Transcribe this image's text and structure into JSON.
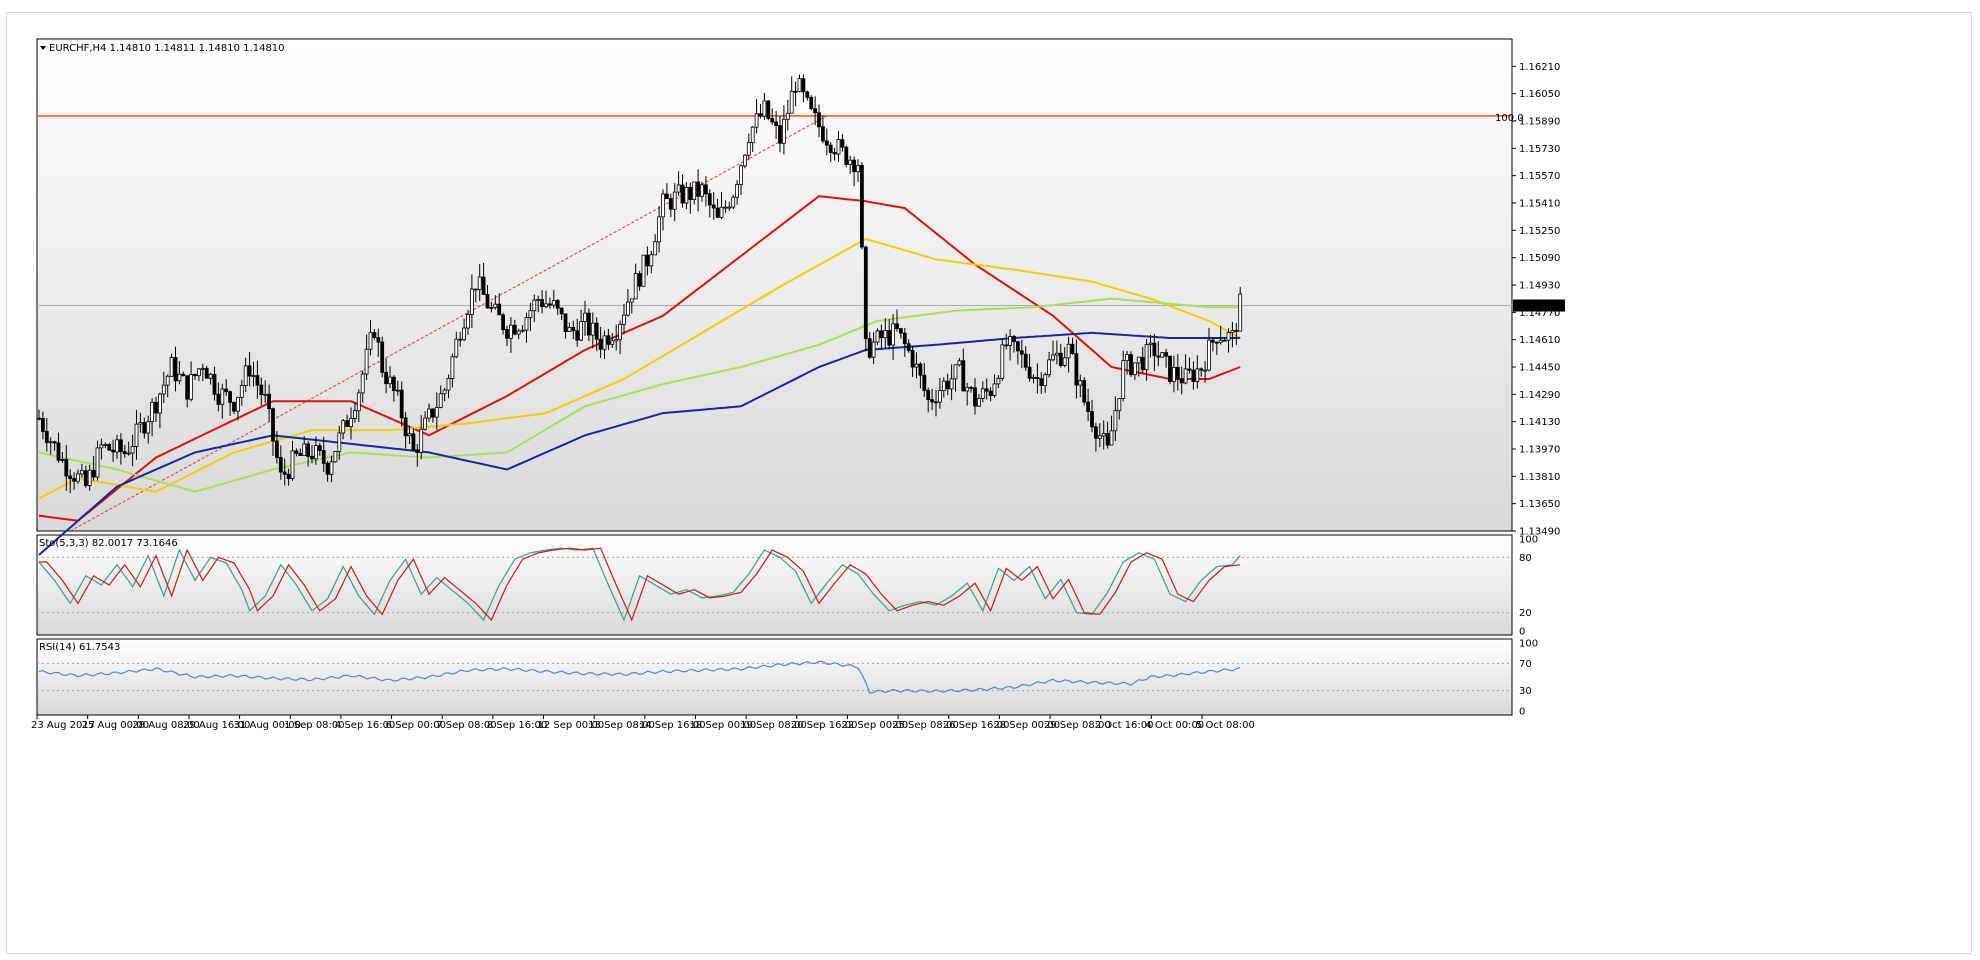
{
  "chart_data": {
    "type": "candlestick",
    "symbol_header": "EURCHF,H4  1.14810 1.14811 1.14810 1.14810",
    "header_icon": "triangle-down-icon",
    "last_price_label": "1.14810",
    "level_line": {
      "label": "100.0",
      "price": 1.1592,
      "color": "#e8541c"
    },
    "price_axis": {
      "ticks": [
        "1.16210",
        "1.16050",
        "1.15890",
        "1.15730",
        "1.15570",
        "1.15410",
        "1.15250",
        "1.15090",
        "1.14930",
        "1.14770",
        "1.14610",
        "1.14450",
        "1.14290",
        "1.14130",
        "1.13970",
        "1.13810",
        "1.13650",
        "1.13490"
      ],
      "ylim": [
        1.1349,
        1.1637
      ]
    },
    "time_axis": [
      "23 Aug 2017",
      "25 Aug 00:00",
      "28 Aug 08:00",
      "29 Aug 16:00",
      "31 Aug 00:00",
      "1 Sep 08:00",
      "4 Sep 16:00",
      "6 Sep 00:00",
      "7 Sep 08:00",
      "8 Sep 16:00",
      "12 Sep 00:00",
      "13 Sep 08:00",
      "14 Sep 16:00",
      "18 Sep 00:00",
      "19 Sep 08:00",
      "20 Sep 16:00",
      "22 Sep 00:00",
      "25 Sep 08:00",
      "26 Sep 16:00",
      "28 Sep 00:00",
      "29 Sep 08:00",
      "2 Oct 16:00",
      "4 Oct 00:00",
      "5 Oct 08:00"
    ],
    "price_keypoints": [
      [
        0,
        1.1415
      ],
      [
        6,
        1.139
      ],
      [
        12,
        1.1375
      ],
      [
        16,
        1.1398
      ],
      [
        22,
        1.1395
      ],
      [
        25,
        1.1405
      ],
      [
        30,
        1.1425
      ],
      [
        34,
        1.1445
      ],
      [
        38,
        1.1432
      ],
      [
        42,
        1.1448
      ],
      [
        46,
        1.143
      ],
      [
        50,
        1.1425
      ],
      [
        54,
        1.1445
      ],
      [
        58,
        1.1425
      ],
      [
        62,
        1.138
      ],
      [
        66,
        1.1392
      ],
      [
        70,
        1.1395
      ],
      [
        74,
        1.1388
      ],
      [
        78,
        1.1408
      ],
      [
        82,
        1.1432
      ],
      [
        86,
        1.1468
      ],
      [
        88,
        1.1445
      ],
      [
        92,
        1.1425
      ],
      [
        96,
        1.1395
      ],
      [
        100,
        1.1415
      ],
      [
        104,
        1.1432
      ],
      [
        108,
        1.1468
      ],
      [
        112,
        1.1495
      ],
      [
        116,
        1.1478
      ],
      [
        120,
        1.1468
      ],
      [
        124,
        1.1472
      ],
      [
        128,
        1.1485
      ],
      [
        132,
        1.148
      ],
      [
        136,
        1.1465
      ],
      [
        140,
        1.147
      ],
      [
        144,
        1.146
      ],
      [
        148,
        1.1468
      ],
      [
        152,
        1.149
      ],
      [
        156,
        1.1508
      ],
      [
        160,
        1.154
      ],
      [
        164,
        1.1545
      ],
      [
        170,
        1.1548
      ],
      [
        174,
        1.153
      ],
      [
        178,
        1.1548
      ],
      [
        182,
        1.1582
      ],
      [
        186,
        1.1595
      ],
      [
        190,
        1.1578
      ],
      [
        194,
        1.1612
      ],
      [
        198,
        1.1592
      ],
      [
        202,
        1.158
      ],
      [
        206,
        1.157
      ],
      [
        210,
        1.1565
      ],
      [
        212,
        1.1455
      ],
      [
        216,
        1.1462
      ],
      [
        220,
        1.1465
      ],
      [
        224,
        1.145
      ],
      [
        228,
        1.1425
      ],
      [
        232,
        1.1435
      ],
      [
        236,
        1.1442
      ],
      [
        240,
        1.1425
      ],
      [
        244,
        1.1432
      ],
      [
        248,
        1.1458
      ],
      [
        252,
        1.145
      ],
      [
        256,
        1.1438
      ],
      [
        260,
        1.145
      ],
      [
        264,
        1.1455
      ],
      [
        268,
        1.1425
      ],
      [
        272,
        1.1405
      ],
      [
        274,
        1.1395
      ],
      [
        278,
        1.1445
      ],
      [
        282,
        1.1448
      ],
      [
        286,
        1.1455
      ],
      [
        290,
        1.1442
      ],
      [
        294,
        1.1438
      ],
      [
        298,
        1.1445
      ],
      [
        302,
        1.1465
      ],
      [
        306,
        1.1462
      ],
      [
        308,
        1.1481
      ]
    ],
    "moving_averages": [
      {
        "color": "#e01010",
        "points": [
          [
            0,
            1.1358
          ],
          [
            10,
            1.1355
          ],
          [
            30,
            1.1392
          ],
          [
            60,
            1.1425
          ],
          [
            80,
            1.1425
          ],
          [
            100,
            1.1405
          ],
          [
            120,
            1.1428
          ],
          [
            140,
            1.1455
          ],
          [
            160,
            1.1475
          ],
          [
            180,
            1.151
          ],
          [
            200,
            1.1545
          ],
          [
            212,
            1.1542
          ],
          [
            222,
            1.1538
          ],
          [
            240,
            1.1505
          ],
          [
            260,
            1.1475
          ],
          [
            275,
            1.1445
          ],
          [
            290,
            1.1438
          ],
          [
            300,
            1.1438
          ],
          [
            308,
            1.1445
          ]
        ]
      },
      {
        "color": "#f2d000",
        "points": [
          [
            0,
            1.1368
          ],
          [
            10,
            1.138
          ],
          [
            30,
            1.1372
          ],
          [
            50,
            1.1395
          ],
          [
            70,
            1.1408
          ],
          [
            90,
            1.1408
          ],
          [
            110,
            1.1412
          ],
          [
            130,
            1.1418
          ],
          [
            150,
            1.1438
          ],
          [
            170,
            1.1465
          ],
          [
            190,
            1.1492
          ],
          [
            212,
            1.152
          ],
          [
            230,
            1.1508
          ],
          [
            250,
            1.1502
          ],
          [
            270,
            1.1495
          ],
          [
            285,
            1.1485
          ],
          [
            300,
            1.1472
          ],
          [
            308,
            1.1462
          ]
        ]
      },
      {
        "color": "#a8e05a",
        "points": [
          [
            0,
            1.1395
          ],
          [
            20,
            1.1385
          ],
          [
            40,
            1.1372
          ],
          [
            60,
            1.1385
          ],
          [
            80,
            1.1395
          ],
          [
            100,
            1.1392
          ],
          [
            120,
            1.1395
          ],
          [
            140,
            1.1422
          ],
          [
            160,
            1.1435
          ],
          [
            180,
            1.1445
          ],
          [
            200,
            1.1458
          ],
          [
            215,
            1.1472
          ],
          [
            235,
            1.1478
          ],
          [
            255,
            1.148
          ],
          [
            275,
            1.1485
          ],
          [
            290,
            1.1482
          ],
          [
            300,
            1.148
          ],
          [
            308,
            1.148
          ]
        ]
      },
      {
        "color": "#1428a0",
        "points": [
          [
            0,
            1.1335
          ],
          [
            20,
            1.1375
          ],
          [
            40,
            1.1395
          ],
          [
            60,
            1.1405
          ],
          [
            80,
            1.14
          ],
          [
            100,
            1.1395
          ],
          [
            120,
            1.1385
          ],
          [
            140,
            1.1405
          ],
          [
            160,
            1.1418
          ],
          [
            180,
            1.1422
          ],
          [
            200,
            1.1445
          ],
          [
            212,
            1.1455
          ],
          [
            230,
            1.1458
          ],
          [
            250,
            1.1462
          ],
          [
            270,
            1.1465
          ],
          [
            290,
            1.1462
          ],
          [
            300,
            1.1462
          ],
          [
            308,
            1.1462
          ]
        ]
      }
    ],
    "fib_line": {
      "color": "#d04040",
      "from": [
        8,
        1.1349
      ],
      "to": [
        202,
        1.1592
      ]
    },
    "stochastic": {
      "label": "Sto(5,3,3) 82.0017 73.1646",
      "ylim": [
        0,
        100
      ],
      "ticks": [
        "100",
        "80",
        "20",
        "0"
      ],
      "keypoints": [
        [
          0,
          75
        ],
        [
          4,
          55
        ],
        [
          8,
          30
        ],
        [
          12,
          60
        ],
        [
          16,
          50
        ],
        [
          20,
          72
        ],
        [
          24,
          48
        ],
        [
          28,
          82
        ],
        [
          32,
          38
        ],
        [
          36,
          88
        ],
        [
          40,
          55
        ],
        [
          44,
          80
        ],
        [
          48,
          74
        ],
        [
          52,
          45
        ],
        [
          54,
          22
        ],
        [
          58,
          38
        ],
        [
          62,
          72
        ],
        [
          66,
          50
        ],
        [
          70,
          22
        ],
        [
          74,
          35
        ],
        [
          78,
          70
        ],
        [
          82,
          38
        ],
        [
          86,
          18
        ],
        [
          90,
          55
        ],
        [
          94,
          78
        ],
        [
          98,
          40
        ],
        [
          102,
          58
        ],
        [
          106,
          44
        ],
        [
          110,
          30
        ],
        [
          114,
          12
        ],
        [
          118,
          50
        ],
        [
          122,
          78
        ],
        [
          126,
          85
        ],
        [
          130,
          88
        ],
        [
          134,
          90
        ],
        [
          138,
          88
        ],
        [
          142,
          90
        ],
        [
          146,
          50
        ],
        [
          150,
          12
        ],
        [
          154,
          60
        ],
        [
          158,
          50
        ],
        [
          162,
          40
        ],
        [
          166,
          45
        ],
        [
          170,
          36
        ],
        [
          174,
          38
        ],
        [
          178,
          42
        ],
        [
          182,
          62
        ],
        [
          186,
          88
        ],
        [
          190,
          80
        ],
        [
          194,
          65
        ],
        [
          198,
          30
        ],
        [
          202,
          52
        ],
        [
          206,
          72
        ],
        [
          210,
          62
        ],
        [
          214,
          40
        ],
        [
          218,
          22
        ],
        [
          222,
          28
        ],
        [
          226,
          32
        ],
        [
          230,
          28
        ],
        [
          234,
          38
        ],
        [
          238,
          52
        ],
        [
          242,
          22
        ],
        [
          246,
          68
        ],
        [
          250,
          55
        ],
        [
          254,
          70
        ],
        [
          258,
          35
        ],
        [
          262,
          56
        ],
        [
          266,
          20
        ],
        [
          270,
          18
        ],
        [
          274,
          42
        ],
        [
          278,
          75
        ],
        [
          282,
          85
        ],
        [
          286,
          78
        ],
        [
          290,
          40
        ],
        [
          294,
          32
        ],
        [
          298,
          55
        ],
        [
          302,
          70
        ],
        [
          306,
          72
        ],
        [
          308,
          82
        ]
      ],
      "colors": {
        "main": "#3aa08a",
        "signal": "#c81e1e"
      }
    },
    "rsi": {
      "label": "RSI(14) 61.7543",
      "ylim": [
        0,
        100
      ],
      "ticks": [
        "100",
        "70",
        "30",
        "0"
      ],
      "keypoints": [
        [
          0,
          58
        ],
        [
          10,
          52
        ],
        [
          20,
          56
        ],
        [
          30,
          62
        ],
        [
          40,
          50
        ],
        [
          50,
          52
        ],
        [
          60,
          48
        ],
        [
          70,
          46
        ],
        [
          80,
          52
        ],
        [
          90,
          45
        ],
        [
          100,
          50
        ],
        [
          110,
          60
        ],
        [
          120,
          62
        ],
        [
          130,
          58
        ],
        [
          140,
          55
        ],
        [
          150,
          54
        ],
        [
          160,
          58
        ],
        [
          170,
          60
        ],
        [
          180,
          62
        ],
        [
          190,
          68
        ],
        [
          200,
          72
        ],
        [
          210,
          65
        ],
        [
          213,
          28
        ],
        [
          220,
          30
        ],
        [
          230,
          29
        ],
        [
          240,
          31
        ],
        [
          250,
          35
        ],
        [
          260,
          45
        ],
        [
          270,
          42
        ],
        [
          280,
          40
        ],
        [
          285,
          50
        ],
        [
          290,
          52
        ],
        [
          300,
          58
        ],
        [
          308,
          62
        ]
      ],
      "color": "#4a8ad8"
    }
  }
}
